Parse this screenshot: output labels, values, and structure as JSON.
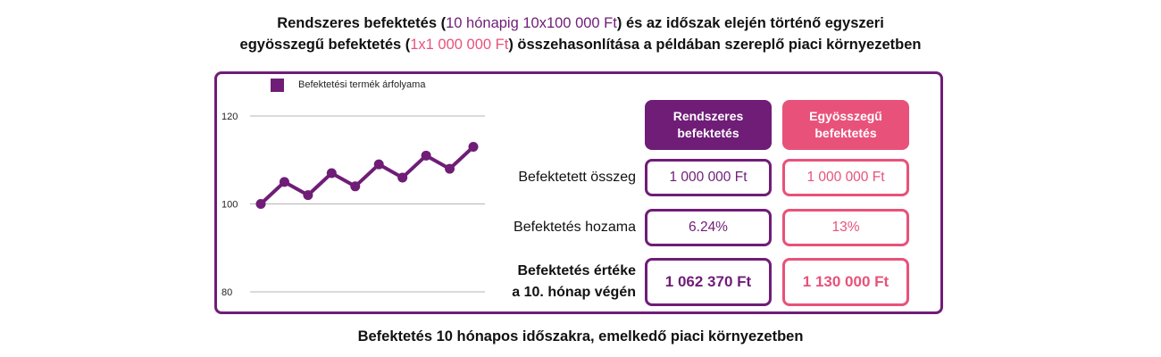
{
  "title": {
    "line1_part1": "Rendszeres befektetés (",
    "line1_highlight": "10 hónapig 10x100 000 Ft",
    "line1_part2": ") és az időszak elején történő egyszeri",
    "line2_part1": "egyösszegű  befektetés (",
    "line2_highlight": "1x1 000 000 Ft",
    "line2_part2": ") összehasonlítása a példában szereplő piaci környezetben"
  },
  "chart_data": {
    "type": "line",
    "title": "",
    "xlabel": "",
    "ylabel": "",
    "x": [
      1,
      2,
      3,
      4,
      5,
      6,
      7,
      8,
      9,
      10
    ],
    "series": [
      {
        "name": "Befektetési termék árfolyama",
        "values": [
          100,
          105,
          102,
          107,
          104,
          109,
          106,
          111,
          108,
          113
        ]
      }
    ],
    "yticks": [
      "120",
      "100",
      "80"
    ],
    "ylim": [
      80,
      120
    ],
    "grid": true,
    "legend": "top-left",
    "color": "#6f1d77"
  },
  "table": {
    "headers": [
      "Rendszeres befektetés",
      "Egyösszegű befektetés"
    ],
    "rows": [
      {
        "label": "Befektetett összeg",
        "values": [
          "1 000 000 Ft",
          "1 000 000 Ft"
        ]
      },
      {
        "label": "Befektetés hozama",
        "values": [
          "6.24%",
          "13%"
        ]
      },
      {
        "label_line1": "Befektetés értéke",
        "label_line2": "a 10. hónap végén",
        "values": [
          "1 062 370 Ft",
          "1 130 000 Ft"
        ]
      }
    ]
  },
  "footer": "Befektetés 10 hónapos időszakra, emelkedő piaci környezetben",
  "colors": {
    "purple": "#6f1d77",
    "pink": "#e8527a",
    "gridline": "#b5b5b5"
  }
}
